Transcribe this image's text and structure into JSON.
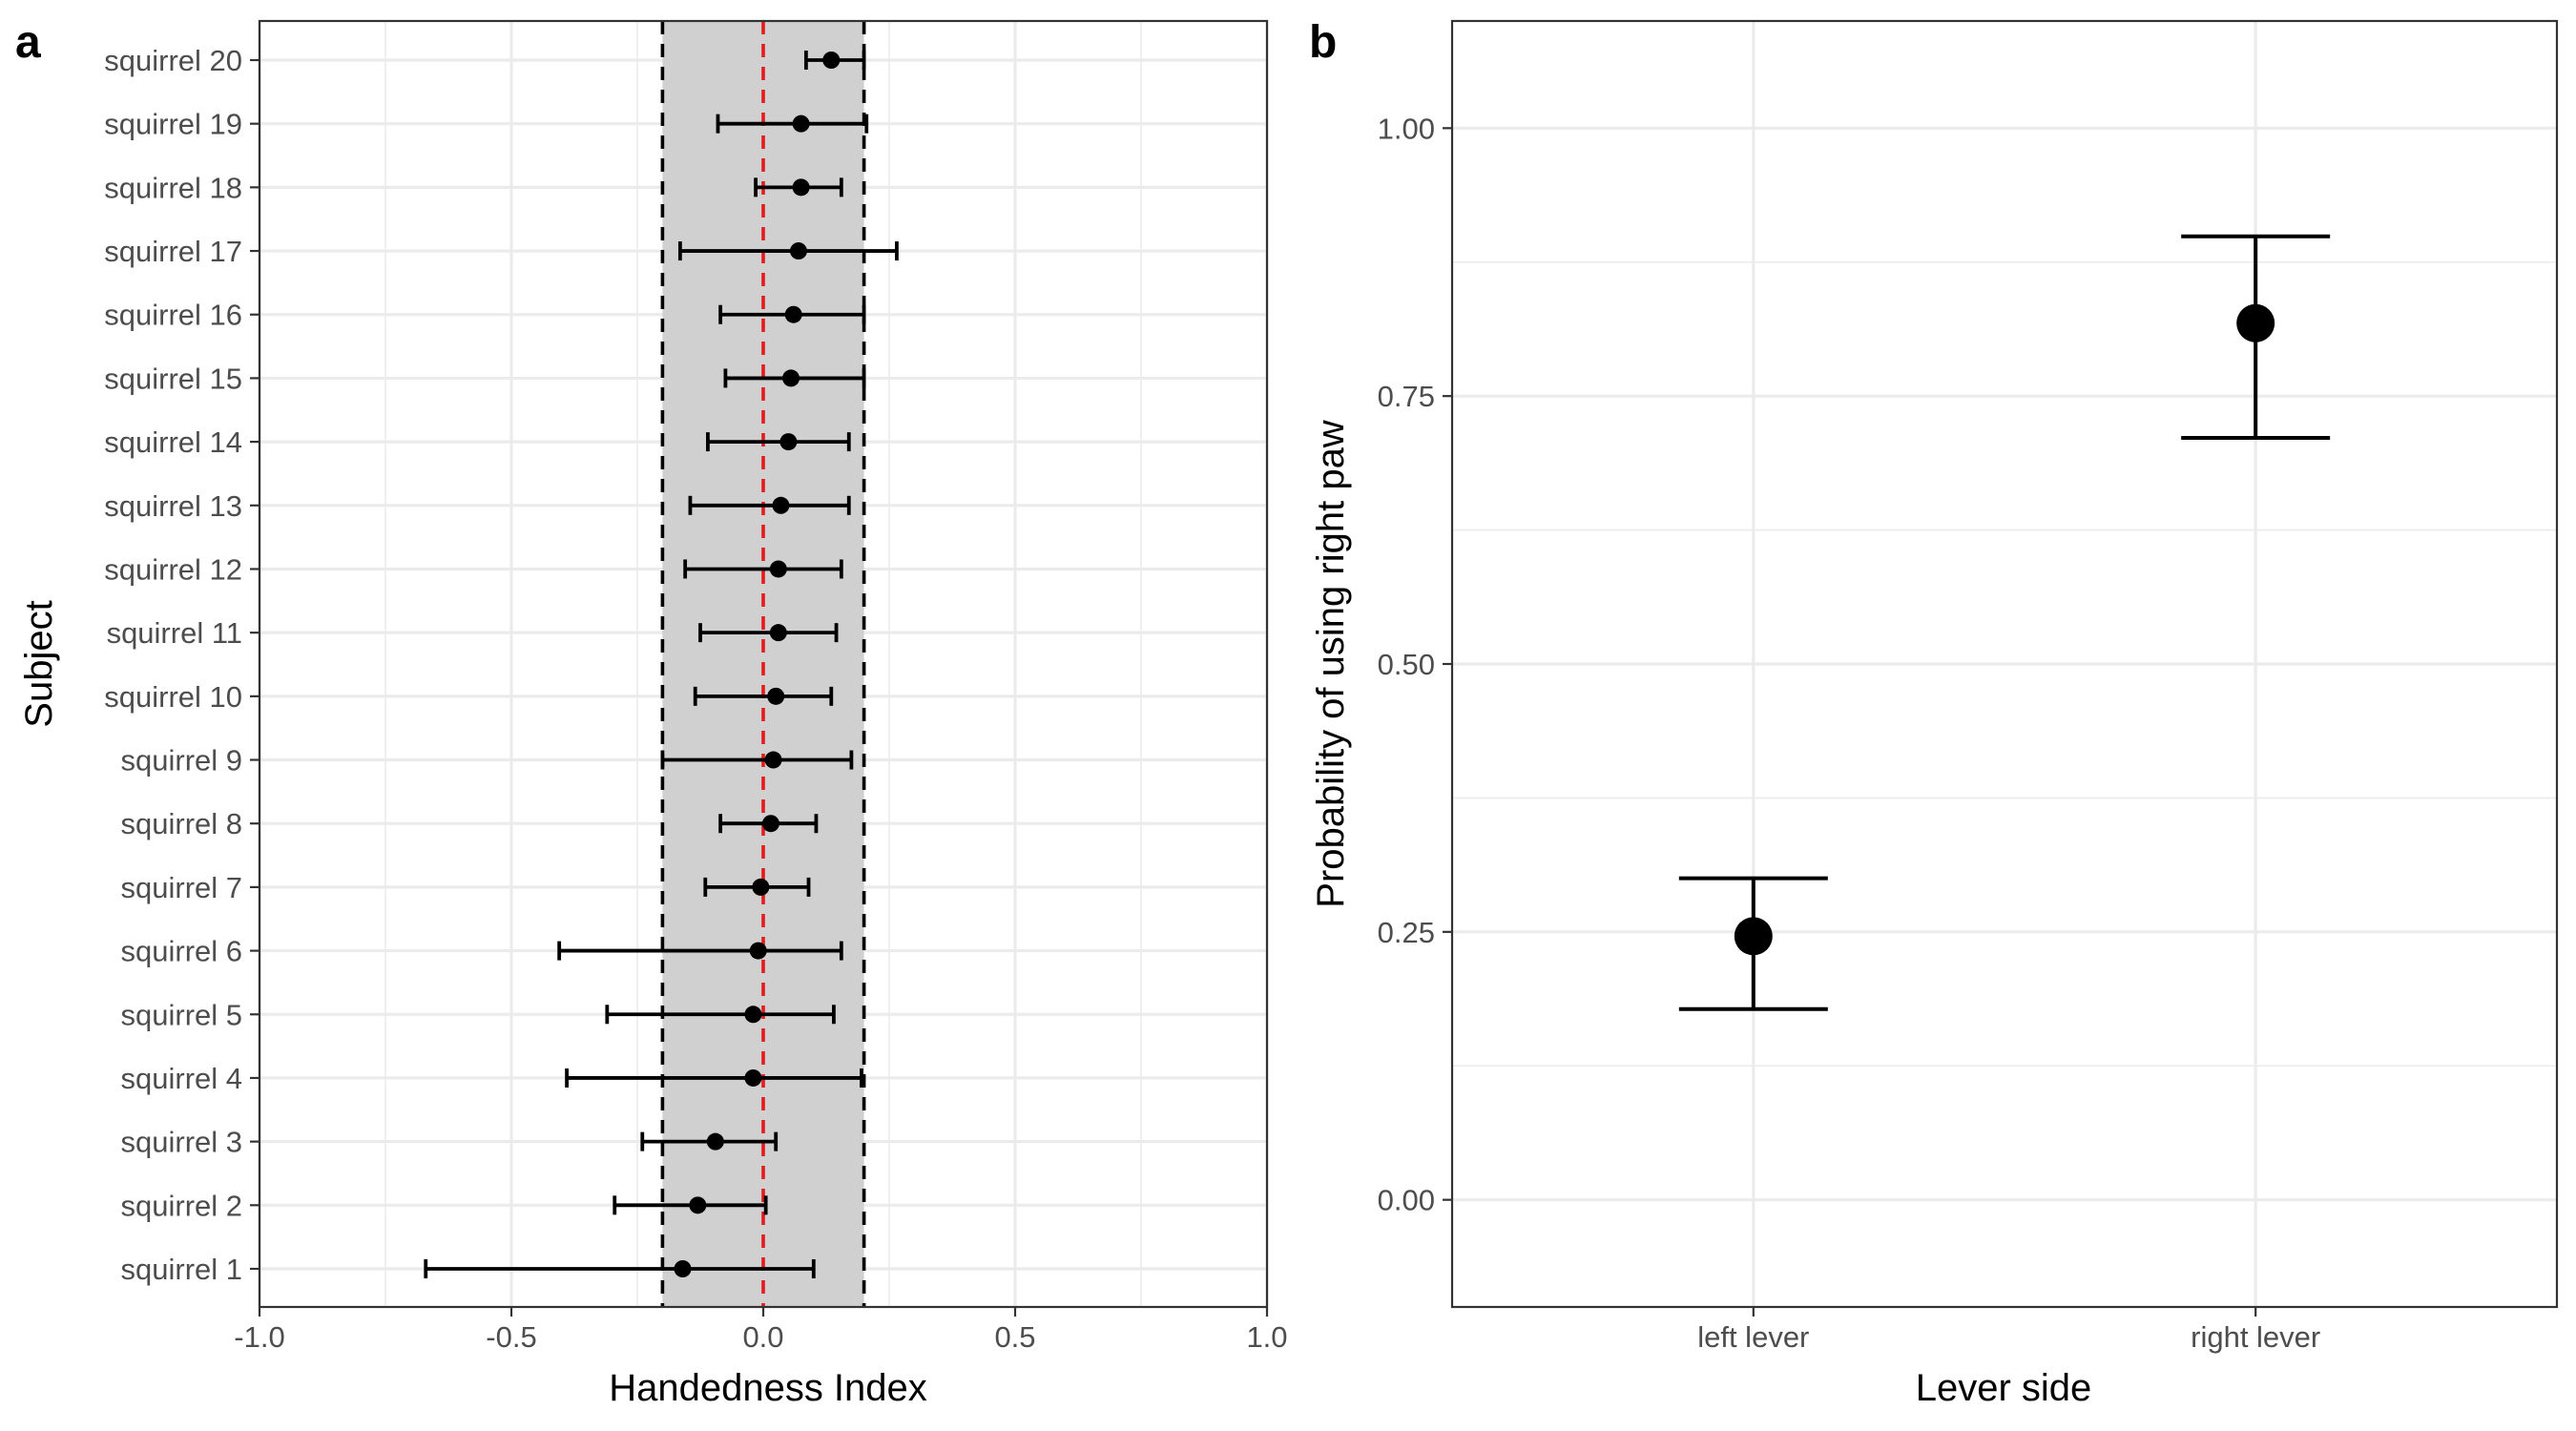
{
  "chart_data": [
    {
      "panel_label": "a",
      "type": "scatter",
      "subtype": "dot-and-whisker (point estimate with interval)",
      "orientation": "horizontal",
      "xlabel": "Handedness Index",
      "ylabel": "Subject",
      "xlim": [
        -1.0,
        1.0
      ],
      "x_ticks": [
        -1.0,
        -0.5,
        0.0,
        0.5,
        1.0
      ],
      "x_tick_labels": [
        "-1.0",
        "-0.5",
        "0.0",
        "0.5",
        "1.0"
      ],
      "grid": true,
      "legend": "none",
      "reference_band": {
        "from": -0.2,
        "to": 0.2,
        "fill": "#d0d0d0",
        "edges": "black dashed"
      },
      "reference_line": {
        "x": 0.0,
        "color": "#e41a1c",
        "style": "dashed"
      },
      "categories": [
        "squirrel 1",
        "squirrel 2",
        "squirrel 3",
        "squirrel 4",
        "squirrel 5",
        "squirrel 6",
        "squirrel 7",
        "squirrel 8",
        "squirrel 9",
        "squirrel 10",
        "squirrel 11",
        "squirrel 12",
        "squirrel 13",
        "squirrel 14",
        "squirrel 15",
        "squirrel 16",
        "squirrel 17",
        "squirrel 18",
        "squirrel 19",
        "squirrel 20"
      ],
      "values": [
        -0.16,
        -0.13,
        -0.095,
        -0.02,
        -0.02,
        -0.01,
        -0.005,
        0.015,
        0.02,
        0.025,
        0.03,
        0.03,
        0.035,
        0.05,
        0.055,
        0.06,
        0.07,
        0.075,
        0.075,
        0.135
      ],
      "lower": [
        -0.67,
        -0.295,
        -0.24,
        -0.39,
        -0.31,
        -0.405,
        -0.115,
        -0.085,
        -0.2,
        -0.135,
        -0.125,
        -0.155,
        -0.145,
        -0.11,
        -0.075,
        -0.085,
        -0.165,
        -0.015,
        -0.09,
        0.085
      ],
      "upper": [
        0.1,
        0.005,
        0.025,
        0.195,
        0.14,
        0.155,
        0.09,
        0.105,
        0.175,
        0.135,
        0.145,
        0.155,
        0.17,
        0.17,
        0.2,
        0.2,
        0.265,
        0.155,
        0.205,
        0.2
      ]
    },
    {
      "panel_label": "b",
      "type": "scatter",
      "subtype": "point estimate with error bars",
      "xlabel": "Lever side",
      "ylabel": "Probability of using right paw",
      "categories": [
        "left lever",
        "right lever"
      ],
      "values": [
        0.246,
        0.818
      ],
      "lower": [
        0.178,
        0.711
      ],
      "upper": [
        0.3,
        0.899
      ],
      "ylim": [
        -0.1,
        1.1
      ],
      "y_ticks": [
        0.0,
        0.25,
        0.5,
        0.75,
        1.0
      ],
      "y_tick_labels": [
        "0.00",
        "0.25",
        "0.50",
        "0.75",
        "1.00"
      ],
      "grid": true,
      "legend": "none"
    }
  ]
}
